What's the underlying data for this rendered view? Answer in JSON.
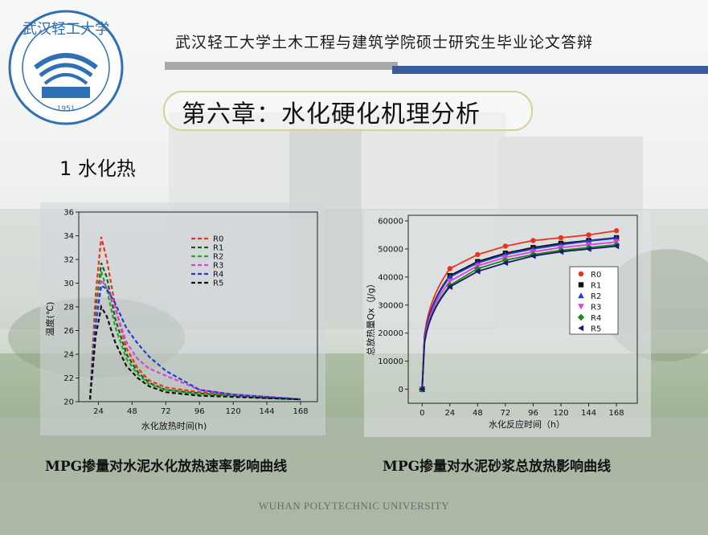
{
  "header": {
    "university_title": "武汉轻工大学土木工程与建筑学院硕士研究生毕业论文答辩",
    "chapter_title": "第六章：水化硬化机理分析",
    "section_title": "1  水化热"
  },
  "logo": {
    "text_cn": "武汉轻工大学",
    "text_en": "WUHAN POLYTECHNIC UNIVERSITY",
    "year": "1951",
    "color": "#2f6fb3"
  },
  "captions": {
    "left": "MPG掺量对水泥水化放热速率影响曲线",
    "right": "MPG掺量对水泥砂浆总放热影响曲线"
  },
  "footer": {
    "text": "WUHAN  POLYTECHNIC UNIVERSITY"
  },
  "chart_data": [
    {
      "type": "line",
      "xlabel": "水化放热时间(h)",
      "ylabel": "温度(℃)",
      "xlim": [
        10,
        180
      ],
      "ylim": [
        20,
        36
      ],
      "xticks": [
        24,
        48,
        72,
        96,
        120,
        144,
        168
      ],
      "yticks": [
        20,
        22,
        24,
        26,
        28,
        30,
        32,
        34,
        36
      ],
      "legend_position": "top-right",
      "line_style": "dashed",
      "series": [
        {
          "name": "R0",
          "color": "#e8341c",
          "x": [
            18,
            22,
            26,
            30,
            36,
            44,
            52,
            60,
            72,
            96,
            120,
            144,
            168
          ],
          "y": [
            20.2,
            29.0,
            33.9,
            32.0,
            28.0,
            24.5,
            22.8,
            21.8,
            21.2,
            20.8,
            20.6,
            20.4,
            20.2
          ]
        },
        {
          "name": "R1",
          "color": "#1a5c1a",
          "x": [
            18,
            22,
            26,
            30,
            36,
            44,
            52,
            60,
            72,
            96,
            120,
            144,
            168
          ],
          "y": [
            20.2,
            27.5,
            31.7,
            30.5,
            27.0,
            24.0,
            22.5,
            21.6,
            21.0,
            20.7,
            20.5,
            20.3,
            20.2
          ]
        },
        {
          "name": "R2",
          "color": "#1faa1f",
          "x": [
            18,
            22,
            26,
            30,
            36,
            44,
            52,
            60,
            72,
            96,
            120,
            144,
            168
          ],
          "y": [
            20.2,
            27.0,
            31.0,
            29.5,
            26.3,
            23.6,
            22.3,
            21.5,
            21.0,
            20.6,
            20.5,
            20.3,
            20.2
          ]
        },
        {
          "name": "R3",
          "color": "#e03ee0",
          "x": [
            18,
            22,
            26,
            30,
            36,
            44,
            52,
            60,
            72,
            96,
            120,
            144,
            168
          ],
          "y": [
            20.2,
            26.8,
            30.3,
            29.6,
            27.8,
            25.0,
            23.6,
            22.8,
            22.2,
            21.0,
            20.6,
            20.4,
            20.2
          ]
        },
        {
          "name": "R4",
          "color": "#1c3fd6",
          "x": [
            18,
            22,
            26,
            30,
            36,
            44,
            52,
            60,
            72,
            96,
            120,
            144,
            168
          ],
          "y": [
            20.2,
            26.5,
            29.8,
            29.5,
            28.3,
            26.2,
            24.9,
            23.8,
            22.6,
            21.0,
            20.6,
            20.4,
            20.2
          ]
        },
        {
          "name": "R5",
          "color": "#111111",
          "x": [
            18,
            22,
            26,
            30,
            36,
            44,
            52,
            60,
            72,
            96,
            120,
            144,
            168
          ],
          "y": [
            20.2,
            25.5,
            28.0,
            27.2,
            25.0,
            23.0,
            22.0,
            21.3,
            20.8,
            20.5,
            20.4,
            20.3,
            20.2
          ]
        }
      ]
    },
    {
      "type": "line",
      "xlabel": "水化反应时间（h）",
      "ylabel": "总放热量Qx（J/g）",
      "xlim": [
        -12,
        186
      ],
      "ylim": [
        -5000,
        62000
      ],
      "xticks": [
        0,
        24,
        48,
        72,
        96,
        120,
        144,
        168
      ],
      "yticks": [
        0,
        10000,
        20000,
        30000,
        40000,
        50000,
        60000
      ],
      "legend_position": "center-right",
      "markers": true,
      "x": [
        0,
        24,
        48,
        72,
        96,
        120,
        144,
        168
      ],
      "series": [
        {
          "name": "R0",
          "color": "#e8341c",
          "marker": "circle",
          "values": [
            0,
            43000,
            48000,
            51000,
            53000,
            54000,
            55000,
            56500
          ]
        },
        {
          "name": "R1",
          "color": "#111111",
          "marker": "square",
          "values": [
            0,
            40500,
            45500,
            48500,
            50500,
            52000,
            53000,
            54000
          ]
        },
        {
          "name": "R2",
          "color": "#1c3fd6",
          "marker": "triangle-up",
          "values": [
            0,
            40000,
            45000,
            48000,
            50000,
            51500,
            52800,
            53800
          ]
        },
        {
          "name": "R3",
          "color": "#e03ee0",
          "marker": "triangle-down",
          "values": [
            0,
            38500,
            44000,
            47000,
            49000,
            50500,
            51500,
            52500
          ]
        },
        {
          "name": "R4",
          "color": "#1a8a1a",
          "marker": "diamond",
          "values": [
            0,
            37000,
            43000,
            46000,
            48000,
            49500,
            50500,
            51500
          ]
        },
        {
          "name": "R5",
          "color": "#1a1a6e",
          "marker": "triangle-left",
          "values": [
            0,
            36500,
            42000,
            45000,
            47500,
            49000,
            50000,
            51000
          ]
        }
      ]
    }
  ]
}
